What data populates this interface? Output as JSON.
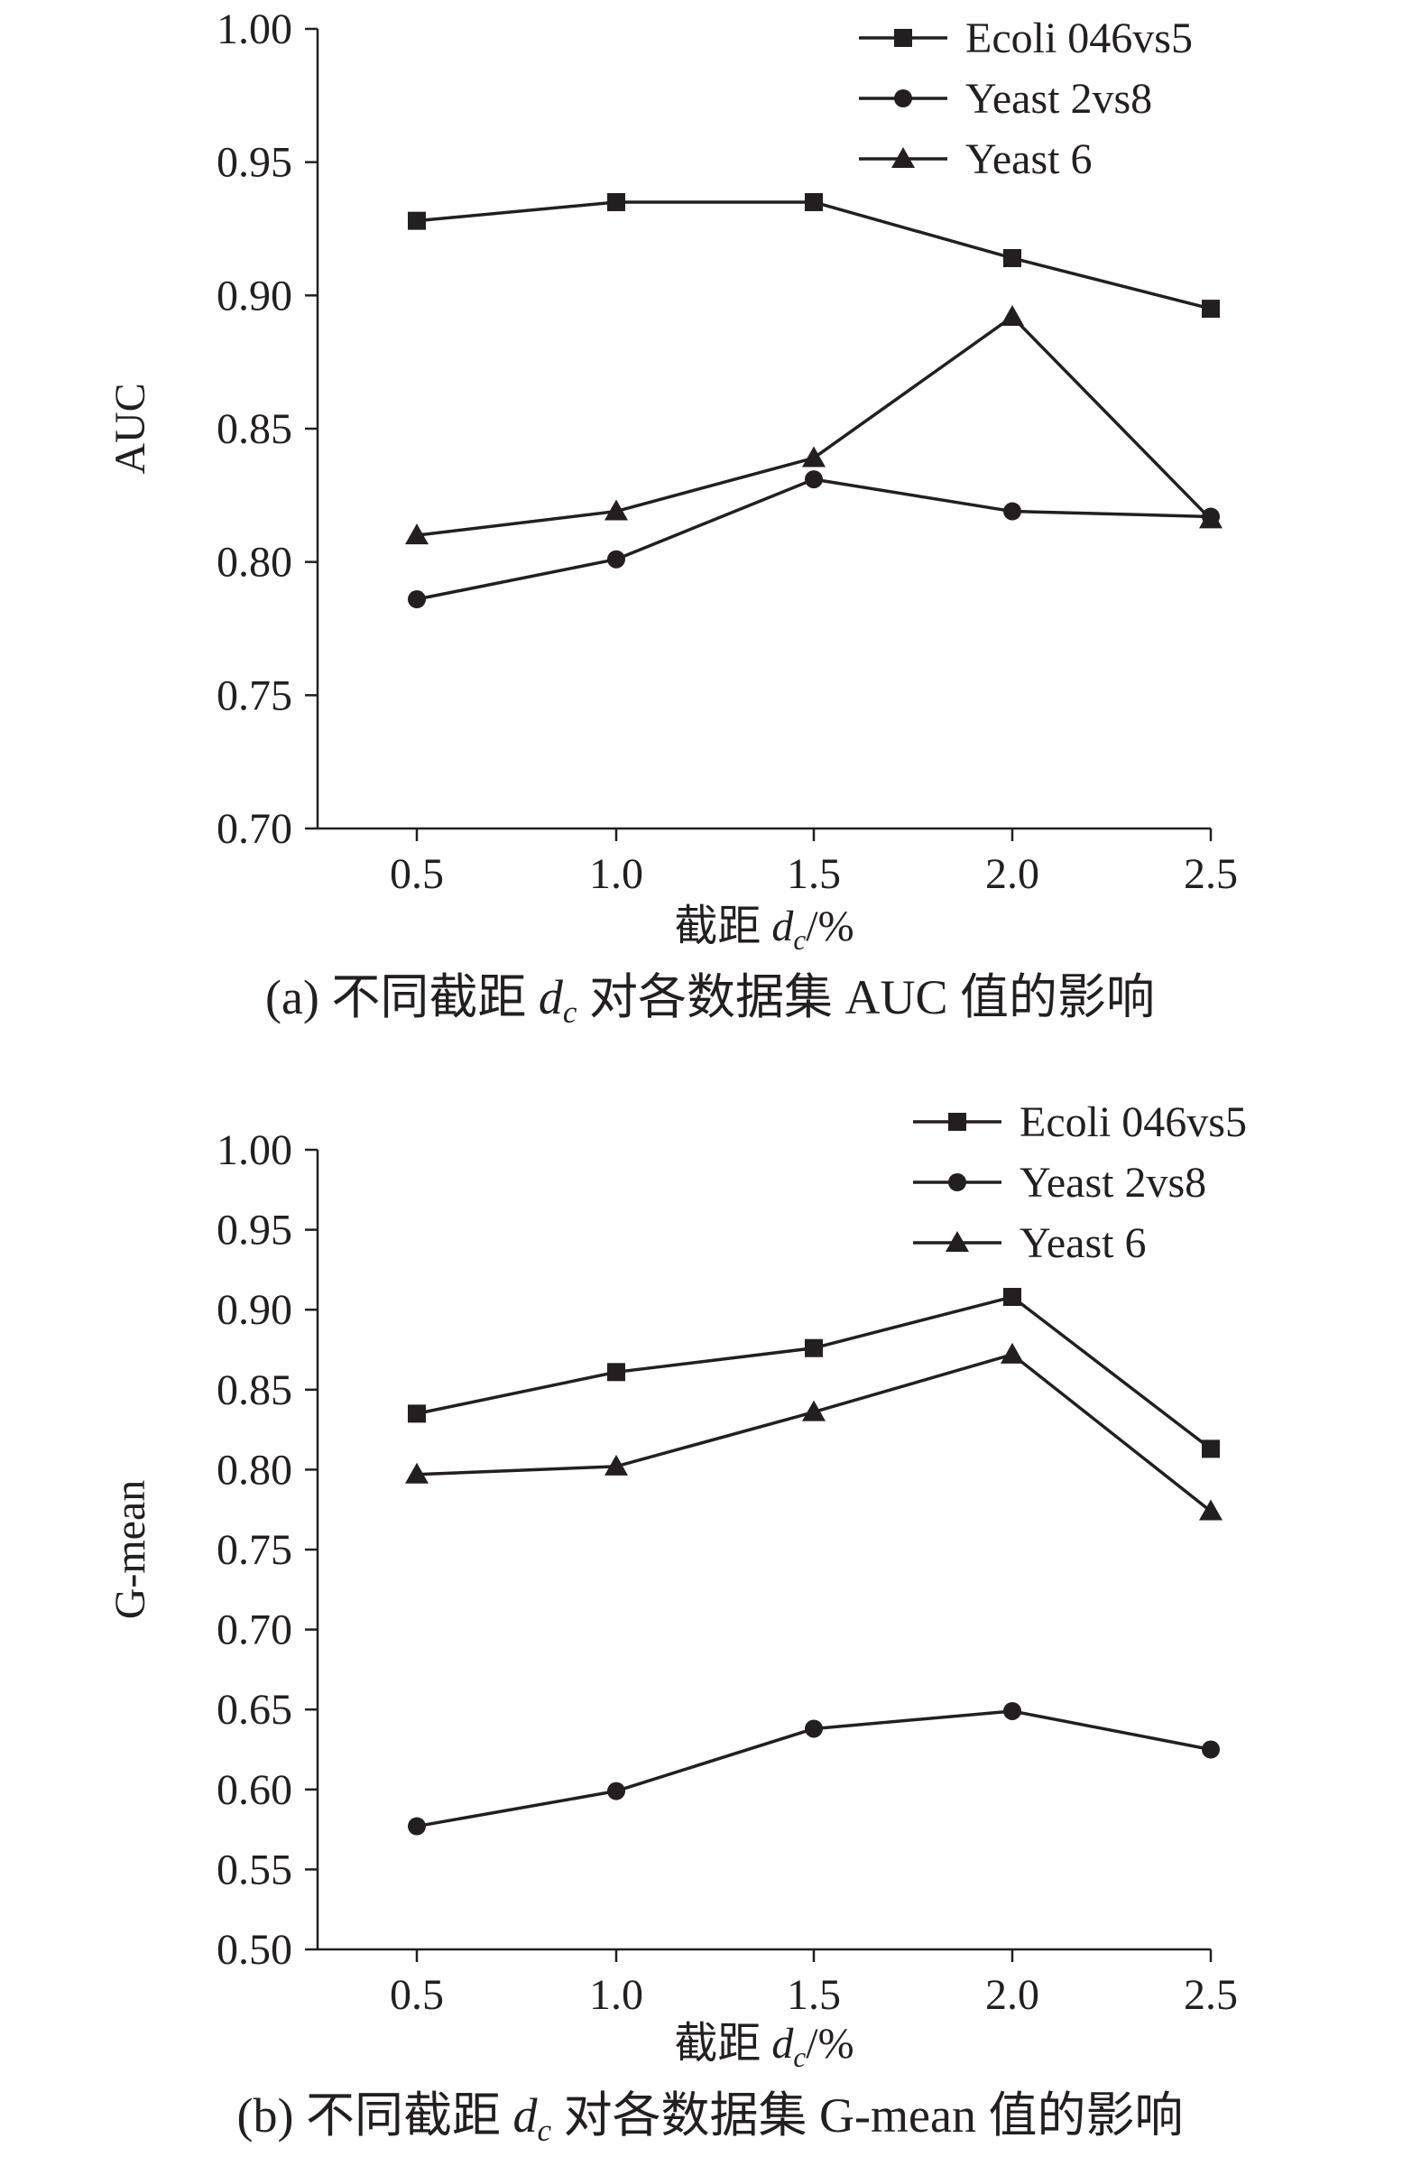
{
  "chart_data": [
    {
      "type": "line",
      "panel": "a",
      "categories": [
        "0.5",
        "1.0",
        "1.5",
        "2.0",
        "2.5"
      ],
      "x": [
        0.5,
        1.0,
        1.5,
        2.0,
        2.5
      ],
      "series": [
        {
          "name": "Ecoli 046vs5",
          "marker": "square",
          "values": [
            0.928,
            0.935,
            0.935,
            0.914,
            0.895
          ]
        },
        {
          "name": "Yeast 2vs8",
          "marker": "circle",
          "values": [
            0.786,
            0.801,
            0.831,
            0.819,
            0.817
          ]
        },
        {
          "name": "Yeast 6",
          "marker": "triangle",
          "values": [
            0.81,
            0.819,
            0.839,
            0.892,
            0.816
          ]
        }
      ],
      "ylabel": "AUC",
      "xlabel_text": "截距 ",
      "xlabel_var": "d",
      "xlabel_sub": "c",
      "xlabel_suffix": "/%",
      "yticks": [
        "0.70",
        "0.75",
        "0.80",
        "0.85",
        "0.90",
        "0.95",
        "1.00"
      ],
      "ylim": [
        0.7,
        1.0
      ],
      "legend_position": "top-right",
      "grid": false,
      "caption_prefix": "(a) 不同截距 ",
      "caption_var": "d",
      "caption_sub": "c",
      "caption_suffix": " 对各数据集 AUC 值的影响"
    },
    {
      "type": "line",
      "panel": "b",
      "categories": [
        "0.5",
        "1.0",
        "1.5",
        "2.0",
        "2.5"
      ],
      "x": [
        0.5,
        1.0,
        1.5,
        2.0,
        2.5
      ],
      "series": [
        {
          "name": "Ecoli 046vs5",
          "marker": "square",
          "values": [
            0.835,
            0.861,
            0.876,
            0.908,
            0.813
          ]
        },
        {
          "name": "Yeast 2vs8",
          "marker": "circle",
          "values": [
            0.577,
            0.599,
            0.638,
            0.649,
            0.625
          ]
        },
        {
          "name": "Yeast 6",
          "marker": "triangle",
          "values": [
            0.797,
            0.802,
            0.836,
            0.872,
            0.774
          ]
        }
      ],
      "ylabel": "G-mean",
      "xlabel_text": "截距 ",
      "xlabel_var": "d",
      "xlabel_sub": "c",
      "xlabel_suffix": "/%",
      "yticks": [
        "0.50",
        "0.55",
        "0.60",
        "0.65",
        "0.70",
        "0.75",
        "0.80",
        "0.85",
        "0.90",
        "0.95",
        "1.00"
      ],
      "ylim": [
        0.5,
        1.0
      ],
      "legend_position": "top-right",
      "grid": false,
      "caption_prefix": "(b) 不同截距 ",
      "caption_var": "d",
      "caption_sub": "c",
      "caption_suffix": " 对各数据集 G-mean 值的影响"
    }
  ],
  "colors": {
    "ink": "#231f20",
    "background": "#ffffff"
  }
}
